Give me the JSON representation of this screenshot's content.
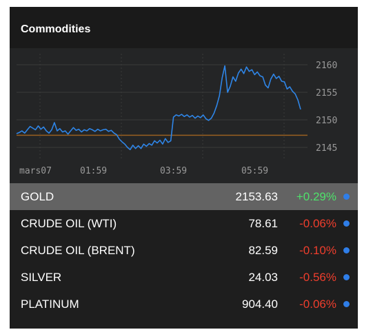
{
  "header": {
    "title": "Commodities"
  },
  "colors": {
    "line": "#2f86e8",
    "reference_line": "#9a6120",
    "axis_text": "#9a9a9a",
    "grid": "#3a3a3a",
    "up": "#4ee26b",
    "down": "#ef3e2d",
    "dot": "#2f7ee8"
  },
  "chart_data": {
    "type": "line",
    "x_tick_labels": [
      "mars07",
      "01:59",
      "03:59",
      "05:59"
    ],
    "y_tick_labels": [
      "2160",
      "2155",
      "2150",
      "2145"
    ],
    "ylim": [
      2143,
      2162
    ],
    "reference_value": 2147.2,
    "grid": true,
    "series": [
      {
        "values": [
          2147.5,
          2147.7,
          2148.0,
          2147.6,
          2148.2,
          2148.8,
          2148.5,
          2148.2,
          2148.9,
          2148.3,
          2148.7,
          2148.0,
          2147.6,
          2148.2,
          2149.5,
          2148.0,
          2148.4,
          2147.8,
          2148.0,
          2147.4,
          2148.0,
          2148.6,
          2148.1,
          2148.3,
          2147.8,
          2148.2,
          2148.0,
          2148.4,
          2148.2,
          2147.9,
          2148.3,
          2148.0,
          2148.2,
          2148.3,
          2147.9,
          2148.1,
          2147.6,
          2147.3,
          2146.5,
          2146.0,
          2145.6,
          2145.0,
          2144.6,
          2145.4,
          2144.8,
          2145.3,
          2144.8,
          2145.6,
          2145.2,
          2145.7,
          2145.4,
          2146.2,
          2145.8,
          2146.3,
          2145.6,
          2146.6,
          2145.9,
          2146.2,
          2150.5,
          2150.9,
          2150.7,
          2151.0,
          2150.6,
          2150.9,
          2150.5,
          2150.8,
          2150.3,
          2150.7,
          2150.4,
          2150.9,
          2150.2,
          2149.9,
          2150.3,
          2151.2,
          2152.6,
          2154.4,
          2157.6,
          2159.8,
          2155.0,
          2156.1,
          2157.8,
          2157.0,
          2158.5,
          2159.2,
          2158.4,
          2159.6,
          2158.8,
          2159.1,
          2158.2,
          2158.7,
          2158.0,
          2157.8,
          2156.3,
          2155.8,
          2157.4,
          2158.3,
          2157.5,
          2157.9,
          2157.0,
          2156.9,
          2155.6,
          2156.0,
          2155.2,
          2154.7,
          2153.6,
          2151.9
        ]
      }
    ]
  },
  "rows": [
    {
      "name": "GOLD",
      "price": "2153.63",
      "change": "+0.29%",
      "direction": "up",
      "selected": true
    },
    {
      "name": "CRUDE OIL (WTI)",
      "price": "78.61",
      "change": "-0.06%",
      "direction": "down",
      "selected": false
    },
    {
      "name": "CRUDE OIL (BRENT)",
      "price": "82.59",
      "change": "-0.10%",
      "direction": "down",
      "selected": false
    },
    {
      "name": "SILVER",
      "price": "24.03",
      "change": "-0.56%",
      "direction": "down",
      "selected": false
    },
    {
      "name": "PLATINUM",
      "price": "904.40",
      "change": "-0.06%",
      "direction": "down",
      "selected": false
    }
  ]
}
